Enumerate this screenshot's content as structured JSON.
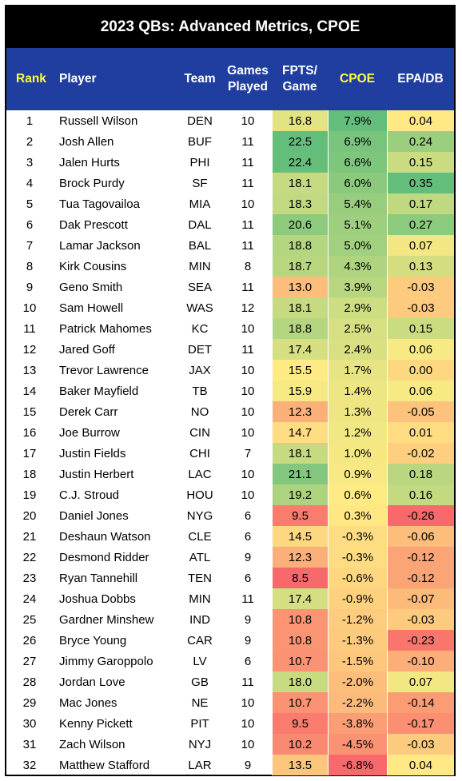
{
  "chart_data": {
    "type": "table",
    "title": "2023 QBs: Advanced Metrics, CPOE",
    "columns": [
      "Rank",
      "Player",
      "Team",
      "Games Played",
      "FPTS/ Game",
      "CPOE",
      "EPA/DB"
    ],
    "column_lines": [
      [
        "Rank"
      ],
      [
        "Player"
      ],
      [
        "Team"
      ],
      [
        "Games",
        "Played"
      ],
      [
        "FPTS/",
        "Game"
      ],
      [
        "CPOE"
      ],
      [
        "EPA/DB"
      ]
    ],
    "highlight_color": "#ffff3c",
    "header_bg": "#203ea0",
    "rows": [
      {
        "rank": "1",
        "player": "Russell Wilson",
        "team": "DEN",
        "games": "10",
        "fpts": "16.8",
        "cpoe": "7.9%",
        "epa": "0.04"
      },
      {
        "rank": "2",
        "player": "Josh Allen",
        "team": "BUF",
        "games": "11",
        "fpts": "22.5",
        "cpoe": "6.9%",
        "epa": "0.24"
      },
      {
        "rank": "3",
        "player": "Jalen Hurts",
        "team": "PHI",
        "games": "11",
        "fpts": "22.4",
        "cpoe": "6.6%",
        "epa": "0.15"
      },
      {
        "rank": "4",
        "player": "Brock Purdy",
        "team": "SF",
        "games": "11",
        "fpts": "18.1",
        "cpoe": "6.0%",
        "epa": "0.35"
      },
      {
        "rank": "5",
        "player": "Tua Tagovailoa",
        "team": "MIA",
        "games": "10",
        "fpts": "18.3",
        "cpoe": "5.4%",
        "epa": "0.17"
      },
      {
        "rank": "6",
        "player": "Dak Prescott",
        "team": "DAL",
        "games": "11",
        "fpts": "20.6",
        "cpoe": "5.1%",
        "epa": "0.27"
      },
      {
        "rank": "7",
        "player": "Lamar Jackson",
        "team": "BAL",
        "games": "11",
        "fpts": "18.8",
        "cpoe": "5.0%",
        "epa": "0.07"
      },
      {
        "rank": "8",
        "player": "Kirk Cousins",
        "team": "MIN",
        "games": "8",
        "fpts": "18.7",
        "cpoe": "4.3%",
        "epa": "0.13"
      },
      {
        "rank": "9",
        "player": "Geno Smith",
        "team": "SEA",
        "games": "11",
        "fpts": "13.0",
        "cpoe": "3.9%",
        "epa": "-0.03"
      },
      {
        "rank": "10",
        "player": "Sam Howell",
        "team": "WAS",
        "games": "12",
        "fpts": "18.1",
        "cpoe": "2.9%",
        "epa": "-0.03"
      },
      {
        "rank": "11",
        "player": "Patrick Mahomes",
        "team": "KC",
        "games": "10",
        "fpts": "18.8",
        "cpoe": "2.5%",
        "epa": "0.15"
      },
      {
        "rank": "12",
        "player": "Jared Goff",
        "team": "DET",
        "games": "11",
        "fpts": "17.4",
        "cpoe": "2.4%",
        "epa": "0.06"
      },
      {
        "rank": "13",
        "player": "Trevor Lawrence",
        "team": "JAX",
        "games": "10",
        "fpts": "15.5",
        "cpoe": "1.7%",
        "epa": "0.00"
      },
      {
        "rank": "14",
        "player": "Baker Mayfield",
        "team": "TB",
        "games": "10",
        "fpts": "15.9",
        "cpoe": "1.4%",
        "epa": "0.06"
      },
      {
        "rank": "15",
        "player": "Derek Carr",
        "team": "NO",
        "games": "10",
        "fpts": "12.3",
        "cpoe": "1.3%",
        "epa": "-0.05"
      },
      {
        "rank": "16",
        "player": "Joe Burrow",
        "team": "CIN",
        "games": "10",
        "fpts": "14.7",
        "cpoe": "1.2%",
        "epa": "0.01"
      },
      {
        "rank": "17",
        "player": "Justin Fields",
        "team": "CHI",
        "games": "7",
        "fpts": "18.1",
        "cpoe": "1.0%",
        "epa": "-0.02"
      },
      {
        "rank": "18",
        "player": "Justin Herbert",
        "team": "LAC",
        "games": "10",
        "fpts": "21.1",
        "cpoe": "0.9%",
        "epa": "0.18"
      },
      {
        "rank": "19",
        "player": "C.J. Stroud",
        "team": "HOU",
        "games": "10",
        "fpts": "19.2",
        "cpoe": "0.6%",
        "epa": "0.16"
      },
      {
        "rank": "20",
        "player": "Daniel Jones",
        "team": "NYG",
        "games": "6",
        "fpts": "9.5",
        "cpoe": "0.3%",
        "epa": "-0.26"
      },
      {
        "rank": "21",
        "player": "Deshaun Watson",
        "team": "CLE",
        "games": "6",
        "fpts": "14.5",
        "cpoe": "-0.3%",
        "epa": "-0.06"
      },
      {
        "rank": "22",
        "player": "Desmond Ridder",
        "team": "ATL",
        "games": "9",
        "fpts": "12.3",
        "cpoe": "-0.3%",
        "epa": "-0.12"
      },
      {
        "rank": "23",
        "player": "Ryan Tannehill",
        "team": "TEN",
        "games": "6",
        "fpts": "8.5",
        "cpoe": "-0.6%",
        "epa": "-0.12"
      },
      {
        "rank": "24",
        "player": "Joshua Dobbs",
        "team": "MIN",
        "games": "11",
        "fpts": "17.4",
        "cpoe": "-0.9%",
        "epa": "-0.07"
      },
      {
        "rank": "25",
        "player": "Gardner Minshew",
        "team": "IND",
        "games": "9",
        "fpts": "10.8",
        "cpoe": "-1.2%",
        "epa": "-0.03"
      },
      {
        "rank": "26",
        "player": "Bryce Young",
        "team": "CAR",
        "games": "9",
        "fpts": "10.8",
        "cpoe": "-1.3%",
        "epa": "-0.23"
      },
      {
        "rank": "27",
        "player": "Jimmy Garoppolo",
        "team": "LV",
        "games": "6",
        "fpts": "10.7",
        "cpoe": "-1.5%",
        "epa": "-0.10"
      },
      {
        "rank": "28",
        "player": "Jordan Love",
        "team": "GB",
        "games": "11",
        "fpts": "18.0",
        "cpoe": "-2.0%",
        "epa": "0.07"
      },
      {
        "rank": "29",
        "player": "Mac Jones",
        "team": "NE",
        "games": "10",
        "fpts": "10.7",
        "cpoe": "-2.2%",
        "epa": "-0.14"
      },
      {
        "rank": "30",
        "player": "Kenny Pickett",
        "team": "PIT",
        "games": "10",
        "fpts": "9.5",
        "cpoe": "-3.8%",
        "epa": "-0.17"
      },
      {
        "rank": "31",
        "player": "Zach Wilson",
        "team": "NYJ",
        "games": "10",
        "fpts": "10.2",
        "cpoe": "-4.5%",
        "epa": "-0.03"
      },
      {
        "rank": "32",
        "player": "Matthew Stafford",
        "team": "LAR",
        "games": "9",
        "fpts": "13.5",
        "cpoe": "-6.8%",
        "epa": "0.04"
      }
    ]
  }
}
